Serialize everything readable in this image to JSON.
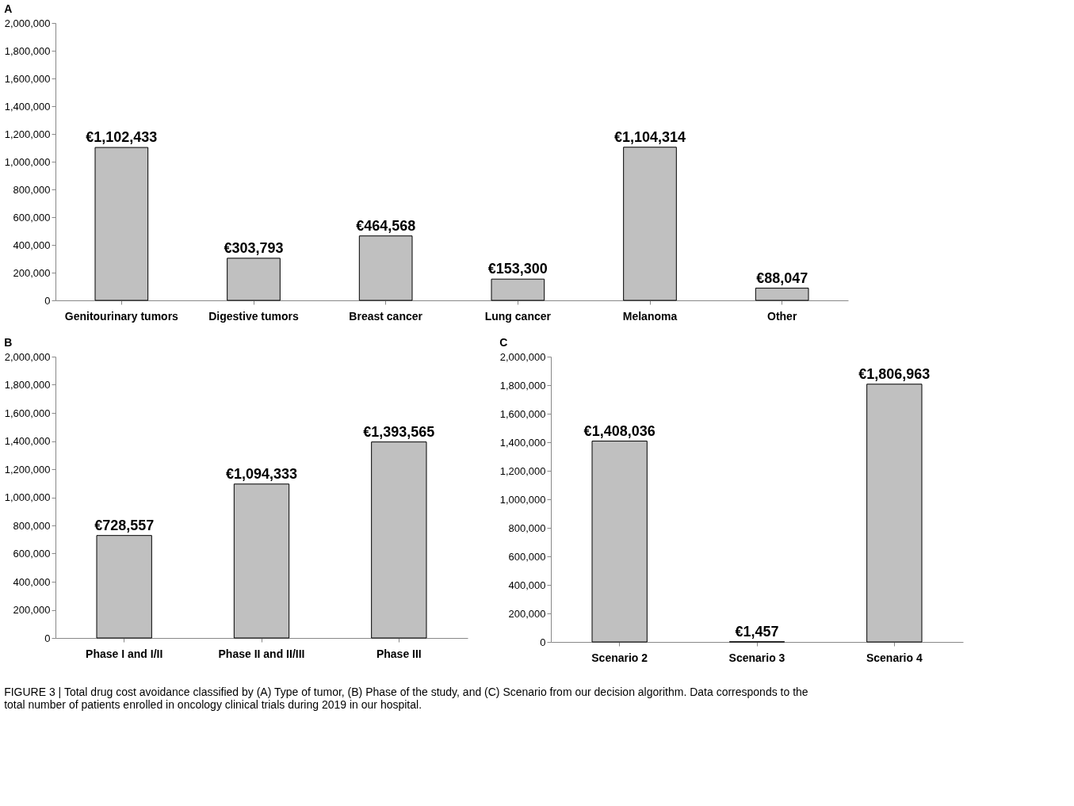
{
  "chart_data": [
    {
      "type": "bar",
      "title": "A",
      "categories": [
        "Genitourinary tumors",
        "Digestive tumors",
        "Breast cancer",
        "Lung cancer",
        "Melanoma",
        "Other"
      ],
      "values": [
        1102433,
        303793,
        464568,
        153300,
        1104314,
        88047
      ],
      "value_labels": [
        "€1,102,433",
        "€303,793",
        "€464,568",
        "€153,300",
        "€1,104,314",
        "€88,047"
      ],
      "color": "#c0c0c0",
      "ylim": [
        0,
        2000000
      ],
      "yticks": [
        0,
        {
          "value": 200000,
          "label": "200,000"
        },
        {
          "value": 400000,
          "label": "400,000"
        },
        {
          "value": 600000,
          "label": "600,000"
        },
        {
          "value": 800000,
          "label": "800,000"
        },
        {
          "value": 1000000,
          "label": "1,000,000"
        },
        {
          "value": 1200000,
          "label": "1,200,000"
        },
        {
          "value": 1400000,
          "label": "1,400,000"
        },
        {
          "value": 1600000,
          "label": "1,600,000"
        },
        {
          "value": 1800000,
          "label": "1,800,000"
        },
        {
          "value": 2000000,
          "label": "2,000,000"
        }
      ],
      "grid": false
    },
    {
      "type": "bar",
      "title": "B",
      "categories": [
        "Phase I and I/II",
        "Phase II and II/III",
        "Phase III"
      ],
      "values": [
        728557,
        1094333,
        1393565
      ],
      "value_labels": [
        "€728,557",
        "€1,094,333",
        "€1,393,565"
      ],
      "color": "#c0c0c0",
      "ylim": [
        0,
        2000000
      ],
      "yticks": [
        0,
        {
          "value": 200000,
          "label": "200,000"
        },
        {
          "value": 400000,
          "label": "400,000"
        },
        {
          "value": 600000,
          "label": "600,000"
        },
        {
          "value": 800000,
          "label": "800,000"
        },
        {
          "value": 1000000,
          "label": "1,000,000"
        },
        {
          "value": 1200000,
          "label": "1,200,000"
        },
        {
          "value": 1400000,
          "label": "1,400,000"
        },
        {
          "value": 1600000,
          "label": "1,600,000"
        },
        {
          "value": 1800000,
          "label": "1,800,000"
        },
        {
          "value": 2000000,
          "label": "2,000,000"
        }
      ],
      "grid": false
    },
    {
      "type": "bar",
      "title": "C",
      "categories": [
        "Scenario 2",
        "Scenario 3",
        "Scenario 4"
      ],
      "values": [
        1408036,
        1457,
        1806963
      ],
      "value_labels": [
        "€1,408,036",
        "€1,457",
        "€1,806,963"
      ],
      "color": "#c0c0c0",
      "ylim": [
        0,
        2000000
      ],
      "yticks": [
        0,
        {
          "value": 200000,
          "label": "200,000"
        },
        {
          "value": 400000,
          "label": "400,000"
        },
        {
          "value": 600000,
          "label": "600,000"
        },
        {
          "value": 800000,
          "label": "800,000"
        },
        {
          "value": 1000000,
          "label": "1,000,000"
        },
        {
          "value": 1200000,
          "label": "1,200,000"
        },
        {
          "value": 1400000,
          "label": "1,400,000"
        },
        {
          "value": 1600000,
          "label": "1,600,000"
        },
        {
          "value": 1800000,
          "label": "1,800,000"
        },
        {
          "value": 2000000,
          "label": "2,000,000"
        }
      ],
      "grid": false,
      "annotations": [
        "FIGURE 3 | Total drug cost avoidance classified by (A) Type of tumor, (B) Phase of the study, and (C) Scenario from our decision algorithm. Data corresponds to the total number of patients enrolled in oncology clinical trials during 2019 in our hospital."
      ]
    }
  ]
}
